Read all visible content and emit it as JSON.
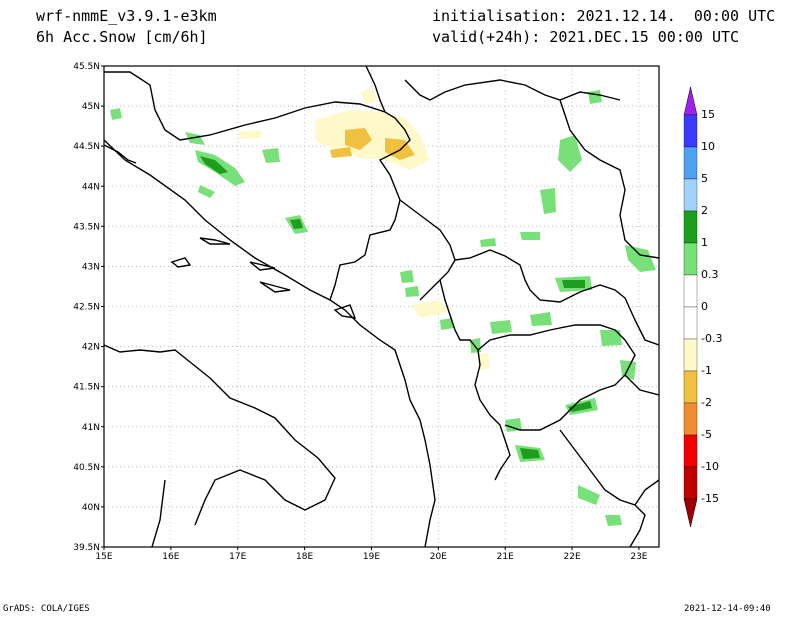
{
  "header": {
    "model": "wrf-nmmE_v3.9.1-e3km",
    "field": "6h Acc.Snow [cm/6h]",
    "initialisation": "initialisation: 2021.12.14.  00:00 UTC",
    "valid": "valid(+24h): 2021.DEC.15 00:00 UTC"
  },
  "footer": {
    "left": "GrADS: COLA/IGES",
    "right": "2021-12-14-09:40"
  },
  "map": {
    "lat_labels": [
      "45.5N",
      "45N",
      "44.5N",
      "44N",
      "43.5N",
      "43N",
      "42.5N",
      "42N",
      "41.5N",
      "41N",
      "40.5N",
      "40N",
      "39.5N"
    ],
    "lat_values": [
      45.5,
      45,
      44.5,
      44,
      43.5,
      43,
      42.5,
      42,
      41.5,
      41,
      40.5,
      40,
      39.5
    ],
    "lon_labels": [
      "15E",
      "16E",
      "17E",
      "18E",
      "19E",
      "20E",
      "21E",
      "22E",
      "23E"
    ],
    "lon_values": [
      15,
      16,
      17,
      18,
      19,
      20,
      21,
      22,
      23
    ]
  },
  "legend": {
    "labels": [
      "15",
      "10",
      "5",
      "2",
      "1",
      "0.3",
      "0",
      "-0.3",
      "-1",
      "-2",
      "-5",
      "-10",
      "-15"
    ],
    "colors": [
      "#a020f0",
      "#3a3aff",
      "#4fa0f0",
      "#a0d2fa",
      "#1e9e1e",
      "#78e078",
      "#ffffff",
      "#ffffff",
      "#fff8c8",
      "#f0c040",
      "#f08c30",
      "#f00000",
      "#c00000",
      "#a00000"
    ]
  }
}
